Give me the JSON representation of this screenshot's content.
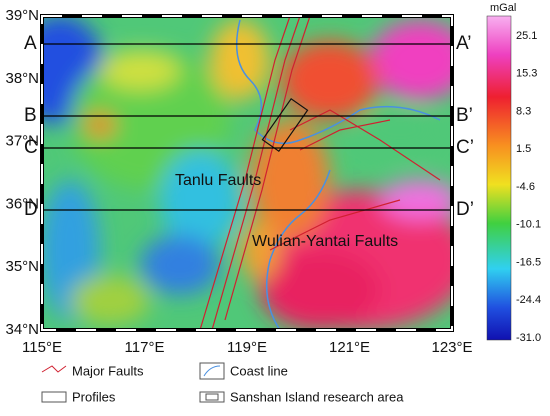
{
  "unit": "mGal",
  "latitude_labels": [
    "39°N",
    "38°N",
    "37°N",
    "36°N",
    "35°N",
    "34°N"
  ],
  "longitude_labels": [
    "115°E",
    "117°E",
    "119°E",
    "121°E",
    "123°E"
  ],
  "colorbar_labels": [
    "25.1",
    "15.3",
    "8.3",
    "1.5",
    "-4.6",
    "-10.1",
    "-16.5",
    "-24.4",
    "-31.0"
  ],
  "profiles": [
    {
      "start": "A",
      "end": "A’"
    },
    {
      "start": "B",
      "end": "B’"
    },
    {
      "start": "C",
      "end": "C’"
    },
    {
      "start": "D",
      "end": "D’"
    }
  ],
  "annotations": [
    "Tanlu Faults",
    "Wulian-Yantai Faults"
  ],
  "legend": [
    "Major Faults",
    "Profiles",
    "Coast line",
    "Sanshan Island research area"
  ]
}
